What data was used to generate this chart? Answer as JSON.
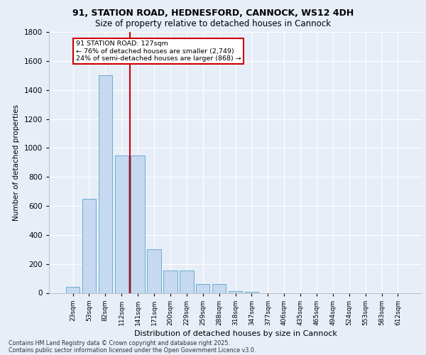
{
  "title_line1": "91, STATION ROAD, HEDNESFORD, CANNOCK, WS12 4DH",
  "title_line2": "Size of property relative to detached houses in Cannock",
  "xlabel": "Distribution of detached houses by size in Cannock",
  "ylabel": "Number of detached properties",
  "categories": [
    "23sqm",
    "53sqm",
    "82sqm",
    "112sqm",
    "141sqm",
    "171sqm",
    "200sqm",
    "229sqm",
    "259sqm",
    "288sqm",
    "318sqm",
    "347sqm",
    "377sqm",
    "406sqm",
    "435sqm",
    "465sqm",
    "494sqm",
    "524sqm",
    "553sqm",
    "583sqm",
    "612sqm"
  ],
  "values": [
    40,
    650,
    1500,
    950,
    950,
    300,
    155,
    155,
    60,
    60,
    10,
    5,
    0,
    0,
    0,
    0,
    0,
    0,
    0,
    0,
    0
  ],
  "bar_color": "#c5d9f0",
  "bar_edge_color": "#6aabd2",
  "vline_color": "#cc0000",
  "vline_index": 3.5,
  "annotation_title": "91 STATION ROAD: 127sqm",
  "annotation_line1": "← 76% of detached houses are smaller (2,749)",
  "annotation_line2": "24% of semi-detached houses are larger (868) →",
  "annotation_box_color": "#cc0000",
  "ylim": [
    0,
    1800
  ],
  "yticks": [
    0,
    200,
    400,
    600,
    800,
    1000,
    1200,
    1400,
    1600,
    1800
  ],
  "bg_color": "#e8eef8",
  "plot_bg_color": "#e8eef8",
  "footer_line1": "Contains HM Land Registry data © Crown copyright and database right 2025.",
  "footer_line2": "Contains public sector information licensed under the Open Government Licence v3.0.",
  "grid_color": "#ffffff"
}
